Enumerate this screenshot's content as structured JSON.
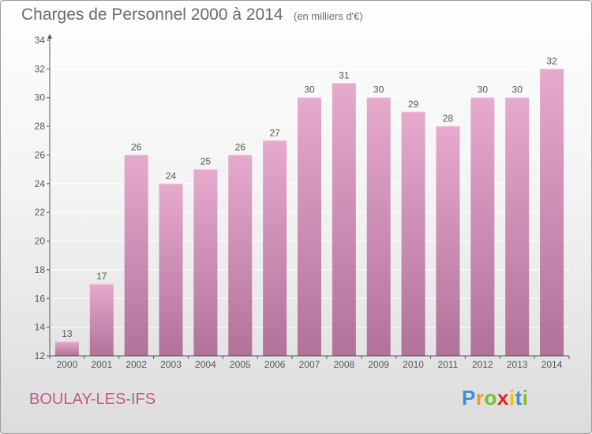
{
  "header": {
    "title": "Charges de Personnel 2000 à 2014",
    "subtitle": "(en milliers d'€)"
  },
  "footer": {
    "commune": "BOULAY-LES-IFS",
    "logo_letters": [
      {
        "ch": "P",
        "color": "#3b8fd6"
      },
      {
        "ch": "r",
        "color": "#f29a1a"
      },
      {
        "ch": "o",
        "color": "#7bbd2f"
      },
      {
        "ch": "x",
        "color": "#e0232e"
      },
      {
        "ch": "i",
        "color": "#f2c200"
      },
      {
        "ch": "t",
        "color": "#3b8fd6"
      },
      {
        "ch": "i",
        "color": "#7bbd2f"
      }
    ]
  },
  "colors": {
    "bar_top": "#e6aacd",
    "bar_bottom": "#b1729a",
    "axis": "#555555",
    "grid": "#ffffff"
  },
  "chart_data": {
    "type": "bar",
    "categories": [
      "2000",
      "2001",
      "2002",
      "2003",
      "2004",
      "2005",
      "2006",
      "2007",
      "2008",
      "2009",
      "2010",
      "2011",
      "2012",
      "2013",
      "2014"
    ],
    "values": [
      13,
      17,
      26,
      24,
      25,
      26,
      27,
      30,
      31,
      30,
      29,
      28,
      30,
      30,
      32
    ],
    "ylim": [
      12,
      34
    ],
    "yticks": [
      12,
      14,
      16,
      18,
      20,
      22,
      24,
      26,
      28,
      30,
      32,
      34
    ],
    "data_labels": true,
    "grid": true
  }
}
